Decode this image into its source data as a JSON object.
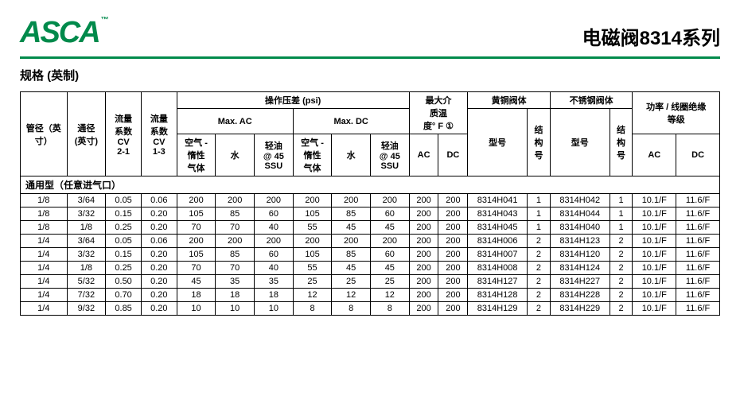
{
  "brand": "ASCA",
  "tm": "™",
  "title": "电磁阀8314系列",
  "subtitle": "规格 (英制)",
  "section_label": "通用型（任意进气口）",
  "headers": {
    "pipe": "管径（英寸）",
    "bore": "通径\n(英寸)",
    "cv21": "流量\n系数\nCV\n2-1",
    "cv13": "流量\n系数\nCV\n1-3",
    "op_group": "操作压差 (psi)",
    "max_ac": "Max. AC",
    "max_dc": "Max. DC",
    "air": "空气 -\n惰性\n气体",
    "water": "水",
    "oil": "轻油\n@ 45\nSSU",
    "temp_group": "最大介\n质温\n度° F ①",
    "ac": "AC",
    "dc": "DC",
    "brass": "黄铜阀体",
    "ss": "不锈钢阀体",
    "model": "型号",
    "struct": "结\n构\n号",
    "power_group": "功率 / 线圈绝缘\n等级"
  },
  "rows": [
    {
      "pipe": "1/8",
      "bore": "3/64",
      "cv21": "0.05",
      "cv13": "0.06",
      "a1": "200",
      "a2": "200",
      "a3": "200",
      "d1": "200",
      "d2": "200",
      "d3": "200",
      "tac": "200",
      "tdc": "200",
      "bm": "8314H041",
      "bs": "1",
      "sm": "8314H042",
      "ss": "1",
      "pac": "10.1/F",
      "pdc": "11.6/F"
    },
    {
      "pipe": "1/8",
      "bore": "3/32",
      "cv21": "0.15",
      "cv13": "0.20",
      "a1": "105",
      "a2": "85",
      "a3": "60",
      "d1": "105",
      "d2": "85",
      "d3": "60",
      "tac": "200",
      "tdc": "200",
      "bm": "8314H043",
      "bs": "1",
      "sm": "8314H044",
      "ss": "1",
      "pac": "10.1/F",
      "pdc": "11.6/F"
    },
    {
      "pipe": "1/8",
      "bore": "1/8",
      "cv21": "0.25",
      "cv13": "0.20",
      "a1": "70",
      "a2": "70",
      "a3": "40",
      "d1": "55",
      "d2": "45",
      "d3": "45",
      "tac": "200",
      "tdc": "200",
      "bm": "8314H045",
      "bs": "1",
      "sm": "8314H040",
      "ss": "1",
      "pac": "10.1/F",
      "pdc": "11.6/F"
    },
    {
      "pipe": "1/4",
      "bore": "3/64",
      "cv21": "0.05",
      "cv13": "0.06",
      "a1": "200",
      "a2": "200",
      "a3": "200",
      "d1": "200",
      "d2": "200",
      "d3": "200",
      "tac": "200",
      "tdc": "200",
      "bm": "8314H006",
      "bs": "2",
      "sm": "8314H123",
      "ss": "2",
      "pac": "10.1/F",
      "pdc": "11.6/F"
    },
    {
      "pipe": "1/4",
      "bore": "3/32",
      "cv21": "0.15",
      "cv13": "0.20",
      "a1": "105",
      "a2": "85",
      "a3": "60",
      "d1": "105",
      "d2": "85",
      "d3": "60",
      "tac": "200",
      "tdc": "200",
      "bm": "8314H007",
      "bs": "2",
      "sm": "8314H120",
      "ss": "2",
      "pac": "10.1/F",
      "pdc": "11.6/F"
    },
    {
      "pipe": "1/4",
      "bore": "1/8",
      "cv21": "0.25",
      "cv13": "0.20",
      "a1": "70",
      "a2": "70",
      "a3": "40",
      "d1": "55",
      "d2": "45",
      "d3": "45",
      "tac": "200",
      "tdc": "200",
      "bm": "8314H008",
      "bs": "2",
      "sm": "8314H124",
      "ss": "2",
      "pac": "10.1/F",
      "pdc": "11.6/F"
    },
    {
      "pipe": "1/4",
      "bore": "5/32",
      "cv21": "0.50",
      "cv13": "0.20",
      "a1": "45",
      "a2": "35",
      "a3": "35",
      "d1": "25",
      "d2": "25",
      "d3": "25",
      "tac": "200",
      "tdc": "200",
      "bm": "8314H127",
      "bs": "2",
      "sm": "8314H227",
      "ss": "2",
      "pac": "10.1/F",
      "pdc": "11.6/F"
    },
    {
      "pipe": "1/4",
      "bore": "7/32",
      "cv21": "0.70",
      "cv13": "0.20",
      "a1": "18",
      "a2": "18",
      "a3": "18",
      "d1": "12",
      "d2": "12",
      "d3": "12",
      "tac": "200",
      "tdc": "200",
      "bm": "8314H128",
      "bs": "2",
      "sm": "8314H228",
      "ss": "2",
      "pac": "10.1/F",
      "pdc": "11.6/F"
    },
    {
      "pipe": "1/4",
      "bore": "9/32",
      "cv21": "0.85",
      "cv13": "0.20",
      "a1": "10",
      "a2": "10",
      "a3": "10",
      "d1": "8",
      "d2": "8",
      "d3": "8",
      "tac": "200",
      "tdc": "200",
      "bm": "8314H129",
      "bs": "2",
      "sm": "8314H229",
      "ss": "2",
      "pac": "10.1/F",
      "pdc": "11.6/F"
    }
  ]
}
